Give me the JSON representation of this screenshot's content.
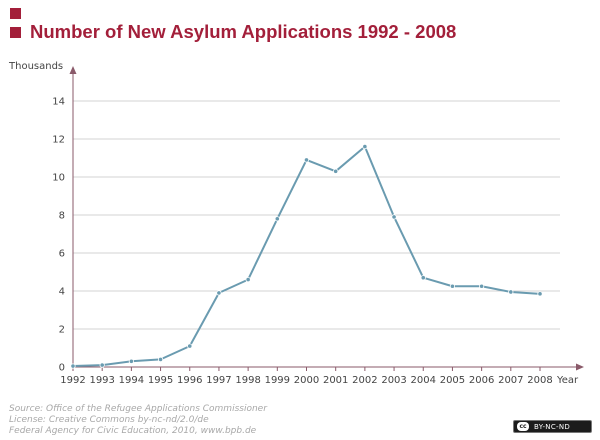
{
  "header": {
    "title": "Number of New Asylum Applications 1992 - 2008",
    "accent_color": "#a31f3a"
  },
  "chart_data": {
    "type": "line",
    "ylabel": "Thousands",
    "xlabel": "Year",
    "x": [
      "1992",
      "1993",
      "1994",
      "1995",
      "1996",
      "1997",
      "1998",
      "1999",
      "2000",
      "2001",
      "2002",
      "2003",
      "2004",
      "2005",
      "2006",
      "2007",
      "2008"
    ],
    "series": [
      {
        "values": [
          0.05,
          0.1,
          0.3,
          0.4,
          1.1,
          3.9,
          4.6,
          7.8,
          10.9,
          10.3,
          11.6,
          7.9,
          4.7,
          4.25,
          4.25,
          3.95,
          3.85
        ]
      }
    ],
    "yticks": [
      0,
      2,
      4,
      6,
      8,
      10,
      12,
      14
    ],
    "ylim": [
      0,
      14
    ],
    "grid": true,
    "line_color": "#6a9bb0",
    "grid_color": "#d3d3d3"
  },
  "footer": {
    "source_lines": [
      "Source: Office of the Refugee Applications Commissioner",
      "License: Creative Commons by-nc-nd/2.0/de",
      "Federal Agency for Civic Education, 2010, www.bpb.de"
    ],
    "license_badge": "BY-NC-ND",
    "license_logo_text": "cc"
  }
}
